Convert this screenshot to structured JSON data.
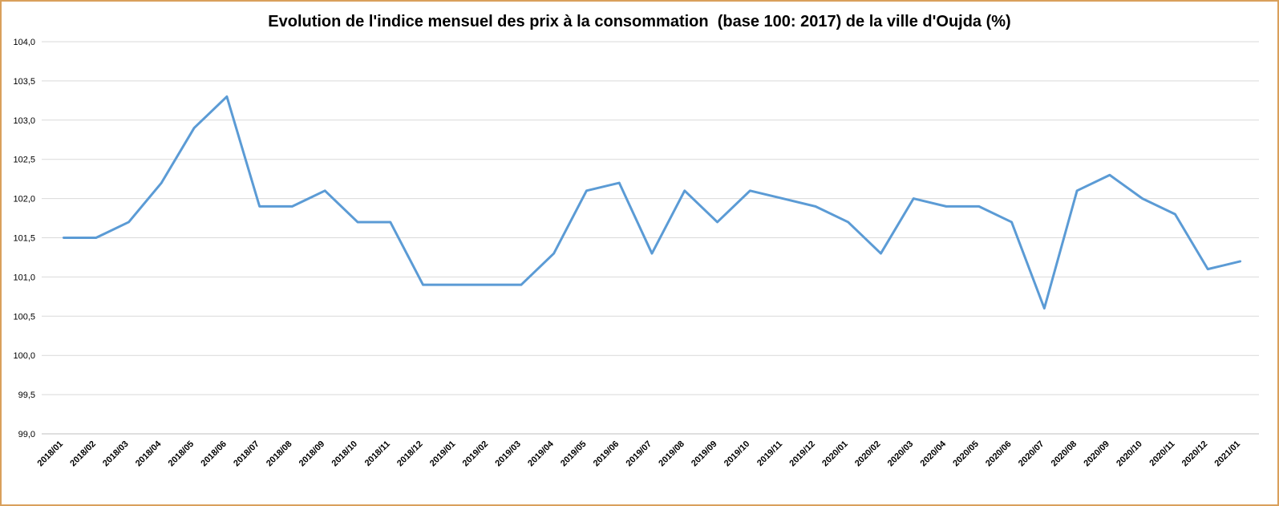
{
  "chart_data": {
    "type": "line",
    "title": "Evolution de l'indice mensuel des prix à la consommation  (base 100: 2017) de la ville d'Oujda (%)",
    "xlabel": "",
    "ylabel": "",
    "ylim": [
      99.0,
      104.0
    ],
    "y_ticks": [
      "99,0",
      "99,5",
      "100,0",
      "100,5",
      "101,0",
      "101,5",
      "102,0",
      "102,5",
      "103,0",
      "103,5",
      "104,0"
    ],
    "grid": true,
    "legend": "none",
    "line_color": "#5b9bd5",
    "categories": [
      "2018/01",
      "2018/02",
      "2018/03",
      "2018/04",
      "2018/05",
      "2018/06",
      "2018/07",
      "2018/08",
      "2018/09",
      "2018/10",
      "2018/11",
      "2018/12",
      "2019/01",
      "2019/02",
      "2019/03",
      "2019/04",
      "2019/05",
      "2019/06",
      "2019/07",
      "2019/08",
      "2019/09",
      "2019/10",
      "2019/11",
      "2019/12",
      "2020/01",
      "2020/02",
      "2020/03",
      "2020/04",
      "2020/05",
      "2020/06",
      "2020/07",
      "2020/08",
      "2020/09",
      "2020/10",
      "2020/11",
      "2020/12",
      "2021/01"
    ],
    "series": [
      {
        "values": [
          101.5,
          101.5,
          101.7,
          102.2,
          102.9,
          103.3,
          101.9,
          101.9,
          102.1,
          101.7,
          101.7,
          100.9,
          100.9,
          100.9,
          100.9,
          101.3,
          102.1,
          102.2,
          101.3,
          102.1,
          101.7,
          102.1,
          102.0,
          101.9,
          101.7,
          101.3,
          102.0,
          101.9,
          101.9,
          101.7,
          100.6,
          102.1,
          102.3,
          102.0,
          101.8,
          101.1,
          101.2
        ]
      }
    ]
  }
}
